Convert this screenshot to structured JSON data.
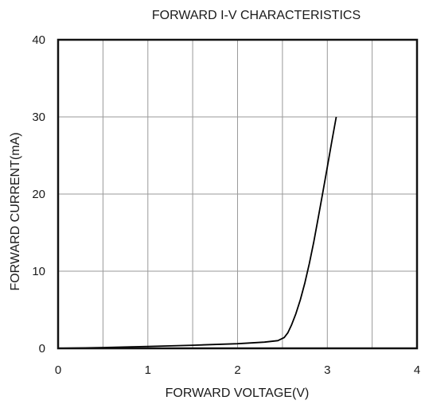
{
  "chart_data": {
    "type": "line",
    "title": "FORWARD I-V CHARACTERISTICS",
    "xlabel": "FORWARD VOLTAGE(V)",
    "ylabel": "FORWARD CURRENT(mA)",
    "xlim": [
      0,
      4
    ],
    "ylim": [
      0,
      40
    ],
    "x_ticks": [
      "0",
      "1",
      "2",
      "3",
      "4"
    ],
    "y_ticks": [
      "0",
      "10",
      "20",
      "30",
      "40"
    ],
    "x_tick_values": [
      0,
      1,
      2,
      3,
      4
    ],
    "y_tick_values": [
      0,
      10,
      20,
      30,
      40
    ],
    "grid": true,
    "legend": "none",
    "series": [
      {
        "x": [
          0.0,
          0.5,
          1.0,
          1.5,
          2.0,
          2.3,
          2.45,
          2.52,
          2.56,
          2.6,
          2.65,
          2.7,
          2.75,
          2.8,
          2.85,
          2.9,
          2.95,
          3.0,
          3.05,
          3.1
        ],
        "y": [
          0.0,
          0.1,
          0.25,
          0.4,
          0.6,
          0.8,
          1.0,
          1.4,
          2.0,
          3.0,
          4.5,
          6.3,
          8.5,
          11.0,
          13.8,
          17.0,
          20.2,
          23.5,
          26.8,
          30.0
        ]
      }
    ],
    "colors": {
      "line": "#000000",
      "grid": "#9a9a9a",
      "frame": "#111111"
    }
  }
}
